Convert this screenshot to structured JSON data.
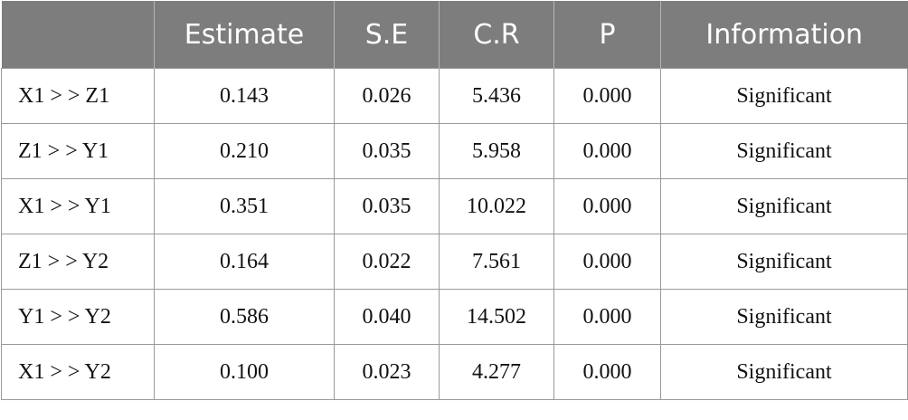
{
  "table": {
    "headers": [
      "",
      "Estimate",
      "S.E",
      "C.R",
      "P",
      "Information"
    ],
    "rows": [
      [
        "X1 > > Z1",
        "0.143",
        "0.026",
        "5.436",
        "0.000",
        "Significant"
      ],
      [
        "Z1 > > Y1",
        "0.210",
        "0.035",
        "5.958",
        "0.000",
        "Significant"
      ],
      [
        "X1 > > Y1",
        "0.351",
        "0.035",
        "10.022",
        "0.000",
        "Significant"
      ],
      [
        "Z1 > > Y2",
        "0.164",
        "0.022",
        "7.561",
        "0.000",
        "Significant"
      ],
      [
        "Y1 > > Y2",
        "0.586",
        "0.040",
        "14.502",
        "0.000",
        "Significant"
      ],
      [
        "X1 > > Y2",
        "0.100",
        "0.023",
        "4.277",
        "0.000",
        "Significant"
      ]
    ]
  },
  "colors": {
    "header_background": "#7d7d7d",
    "header_text": "#ffffff",
    "grid_line": "#9a9a9a"
  }
}
